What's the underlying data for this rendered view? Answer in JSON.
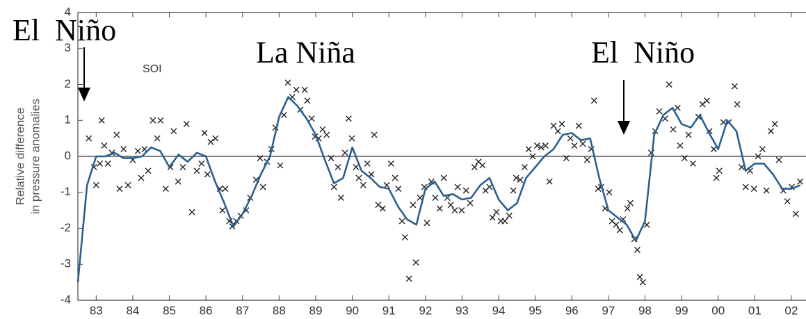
{
  "chart_data": {
    "type": "line",
    "annotations": [
      "El  Niño",
      "La Niña",
      "El  Niño",
      "SOI"
    ],
    "y_label": [
      "Relative difference",
      "in pressure anomalies"
    ],
    "xlim": [
      1983.0,
      2002.9
    ],
    "ylim": [
      -4,
      4
    ],
    "yticks": [
      -4,
      -3,
      -2,
      -1,
      0,
      1,
      2,
      3,
      4
    ],
    "xticks": [
      {
        "value": 1983.5,
        "label": "83"
      },
      {
        "value": 1984.5,
        "label": "84"
      },
      {
        "value": 1985.5,
        "label": "85"
      },
      {
        "value": 1986.5,
        "label": "86"
      },
      {
        "value": 1987.5,
        "label": "87"
      },
      {
        "value": 1988.5,
        "label": "88"
      },
      {
        "value": 1989.5,
        "label": "89"
      },
      {
        "value": 1990.5,
        "label": "90"
      },
      {
        "value": 1991.5,
        "label": "91"
      },
      {
        "value": 1992.5,
        "label": "92"
      },
      {
        "value": 1993.5,
        "label": "93"
      },
      {
        "value": 1994.5,
        "label": "94"
      },
      {
        "value": 1995.5,
        "label": "95"
      },
      {
        "value": 1996.5,
        "label": "96"
      },
      {
        "value": 1997.5,
        "label": "97"
      },
      {
        "value": 1998.5,
        "label": "98"
      },
      {
        "value": 1999.5,
        "label": "99"
      },
      {
        "value": 2000.5,
        "label": "00"
      },
      {
        "value": 2001.5,
        "label": "01"
      },
      {
        "value": 2002.5,
        "label": "02"
      }
    ],
    "series": [
      {
        "type": "line",
        "color": "#2b5f8e",
        "x": [
          1983.0,
          1983.25,
          1983.5,
          1983.75,
          1984.0,
          1984.25,
          1984.5,
          1984.75,
          1985.0,
          1985.25,
          1985.5,
          1985.75,
          1986.0,
          1986.25,
          1986.5,
          1986.75,
          1987.0,
          1987.25,
          1987.5,
          1987.75,
          1988.0,
          1988.25,
          1988.5,
          1988.75,
          1989.0,
          1989.25,
          1989.5,
          1989.75,
          1990.0,
          1990.25,
          1990.5,
          1990.75,
          1991.0,
          1991.25,
          1991.5,
          1991.75,
          1992.0,
          1992.25,
          1992.5,
          1992.75,
          1993.0,
          1993.25,
          1993.5,
          1993.75,
          1994.0,
          1994.25,
          1994.5,
          1994.75,
          1995.0,
          1995.25,
          1995.5,
          1995.75,
          1996.0,
          1996.25,
          1996.5,
          1996.75,
          1997.0,
          1997.25,
          1997.5,
          1997.75,
          1998.0,
          1998.25,
          1998.5,
          1998.75,
          1999.0,
          1999.25,
          1999.5,
          1999.75,
          2000.0,
          2000.25,
          2000.5,
          2000.75,
          2001.0,
          2001.25,
          2001.5,
          2001.75,
          2002.0,
          2002.25,
          2002.5,
          2002.75
        ],
        "values": [
          -3.5,
          -0.8,
          0.0,
          0.0,
          0.1,
          -0.05,
          -0.05,
          0.0,
          0.25,
          0.15,
          -0.3,
          0.05,
          -0.15,
          0.1,
          0.0,
          -0.7,
          -1.3,
          -1.95,
          -1.6,
          -1.1,
          -0.5,
          0.0,
          1.1,
          1.65,
          1.4,
          1.05,
          0.6,
          -0.1,
          -0.75,
          -0.6,
          0.25,
          -0.4,
          -0.6,
          -0.85,
          -0.9,
          -1.4,
          -1.75,
          -1.9,
          -0.9,
          -0.7,
          -1.1,
          -1.05,
          -1.2,
          -1.15,
          -0.8,
          -0.6,
          -1.2,
          -1.5,
          -1.3,
          -0.6,
          -0.3,
          0.0,
          0.2,
          0.6,
          0.65,
          0.45,
          0.5,
          -0.6,
          -1.5,
          -1.7,
          -1.9,
          -2.35,
          -1.8,
          0.6,
          1.15,
          1.35,
          0.9,
          0.8,
          1.15,
          0.65,
          0.2,
          1.0,
          0.7,
          -0.4,
          -0.2,
          -0.2,
          -0.5,
          -0.9,
          -0.9,
          -0.8
        ]
      },
      {
        "type": "scatter",
        "color": "#222222",
        "x": [
          1983.3,
          1983.44,
          1983.5,
          1983.6,
          1983.65,
          1983.72,
          1983.82,
          1983.93,
          1984.06,
          1984.14,
          1984.25,
          1984.37,
          1984.5,
          1984.64,
          1984.73,
          1984.82,
          1984.92,
          1985.05,
          1985.17,
          1985.26,
          1985.4,
          1985.53,
          1985.62,
          1985.74,
          1985.87,
          1985.97,
          1986.12,
          1986.25,
          1986.38,
          1986.46,
          1986.54,
          1986.63,
          1986.76,
          1986.88,
          1986.95,
          1987.03,
          1987.14,
          1987.22,
          1987.33,
          1987.45,
          1987.6,
          1987.71,
          1987.87,
          1987.98,
          1988.06,
          1988.17,
          1988.29,
          1988.4,
          1988.53,
          1988.63,
          1988.74,
          1988.86,
          1988.97,
          1989.08,
          1989.2,
          1989.27,
          1989.39,
          1989.48,
          1989.58,
          1989.69,
          1989.8,
          1989.92,
          1990.0,
          1990.11,
          1990.19,
          1990.3,
          1990.4,
          1990.49,
          1990.6,
          1990.68,
          1990.8,
          1990.91,
          1991.02,
          1991.1,
          1991.21,
          1991.33,
          1991.44,
          1991.56,
          1991.67,
          1991.76,
          1991.86,
          1991.94,
          1992.05,
          1992.16,
          1992.24,
          1992.35,
          1992.47,
          1992.54,
          1992.66,
          1992.77,
          1992.89,
          1993.0,
          1993.1,
          1993.19,
          1993.3,
          1993.38,
          1993.49,
          1993.61,
          1993.72,
          1993.84,
          1993.95,
          1994.06,
          1994.14,
          1994.25,
          1994.33,
          1994.44,
          1994.56,
          1994.67,
          1994.79,
          1994.9,
          1994.98,
          1995.09,
          1995.21,
          1995.32,
          1995.43,
          1995.55,
          1995.66,
          1995.78,
          1995.89,
          1996.0,
          1996.12,
          1996.23,
          1996.35,
          1996.46,
          1996.57,
          1996.69,
          1996.8,
          1996.92,
          1997.03,
          1997.11,
          1997.22,
          1997.3,
          1997.41,
          1997.52,
          1997.6,
          1997.71,
          1997.81,
          1997.9,
          1998.02,
          1998.1,
          1998.21,
          1998.29,
          1998.36,
          1998.44,
          1998.55,
          1998.67,
          1998.78,
          1998.89,
          1999.05,
          1999.16,
          1999.27,
          1999.39,
          1999.46,
          1999.58,
          1999.69,
          1999.81,
          1999.96,
          2000.07,
          2000.19,
          2000.26,
          2000.38,
          2000.45,
          2000.53,
          2000.64,
          2000.79,
          2000.95,
          2001.02,
          2001.14,
          2001.25,
          2001.37,
          2001.48,
          2001.59,
          2001.71,
          2001.82,
          2001.94,
          2002.05,
          2002.16,
          2002.28,
          2002.39,
          2002.51,
          2002.62,
          2002.74
        ],
        "values": [
          0.5,
          -0.3,
          -0.8,
          -0.2,
          1.0,
          0.3,
          -0.2,
          0.1,
          0.6,
          -0.9,
          0.2,
          -0.8,
          -0.1,
          0.15,
          -0.6,
          0.2,
          -0.4,
          1.0,
          0.5,
          1.0,
          -0.9,
          -0.3,
          0.7,
          -0.7,
          -0.3,
          0.9,
          -1.55,
          -0.4,
          -0.2,
          0.65,
          -0.5,
          0.4,
          0.5,
          -0.9,
          -1.5,
          -0.9,
          -1.8,
          -1.95,
          -1.8,
          -1.65,
          -1.5,
          -1.15,
          -0.65,
          -0.05,
          -0.85,
          -0.15,
          0.2,
          0.8,
          -0.25,
          1.15,
          2.05,
          1.65,
          1.85,
          1.3,
          1.85,
          1.55,
          1.05,
          0.55,
          0.5,
          0.75,
          0.6,
          -0.05,
          -0.85,
          -0.3,
          -1.15,
          0.1,
          1.05,
          0.5,
          -0.3,
          -0.6,
          -0.8,
          -0.2,
          -0.5,
          0.6,
          -1.35,
          -1.45,
          -0.8,
          -0.2,
          -0.6,
          -0.9,
          -1.8,
          -2.25,
          -3.4,
          -1.35,
          -2.95,
          -1.15,
          -0.85,
          -1.85,
          -0.7,
          -1.15,
          -1.45,
          -0.6,
          -1.15,
          -1.35,
          -1.5,
          -0.85,
          -1.5,
          -0.95,
          -1.3,
          -0.3,
          -0.15,
          -0.25,
          -0.95,
          -0.85,
          -1.7,
          -1.55,
          -1.8,
          -1.8,
          -1.65,
          -0.95,
          -0.6,
          -0.65,
          -0.3,
          0.2,
          0.0,
          0.3,
          0.25,
          0.3,
          -0.7,
          0.85,
          0.7,
          0.9,
          -0.05,
          0.5,
          0.3,
          0.85,
          0.35,
          -0.1,
          0.2,
          1.55,
          -0.9,
          -0.85,
          -1.45,
          -1.0,
          -1.8,
          -1.9,
          -2.05,
          -1.75,
          -1.45,
          -1.3,
          -2.3,
          -2.6,
          -3.35,
          -3.5,
          -1.9,
          0.1,
          0.7,
          1.25,
          1.05,
          2.0,
          0.75,
          1.35,
          0.3,
          -0.05,
          0.6,
          -0.2,
          1.1,
          1.45,
          1.55,
          0.7,
          0.2,
          -0.6,
          -0.4,
          0.95,
          0.95,
          1.95,
          1.45,
          -0.3,
          -0.85,
          -0.4,
          -0.9,
          0.0,
          0.2,
          -0.95,
          0.7,
          0.9,
          -0.1,
          -0.95,
          -1.25,
          -0.85,
          -1.6,
          -0.7
        ]
      }
    ]
  }
}
